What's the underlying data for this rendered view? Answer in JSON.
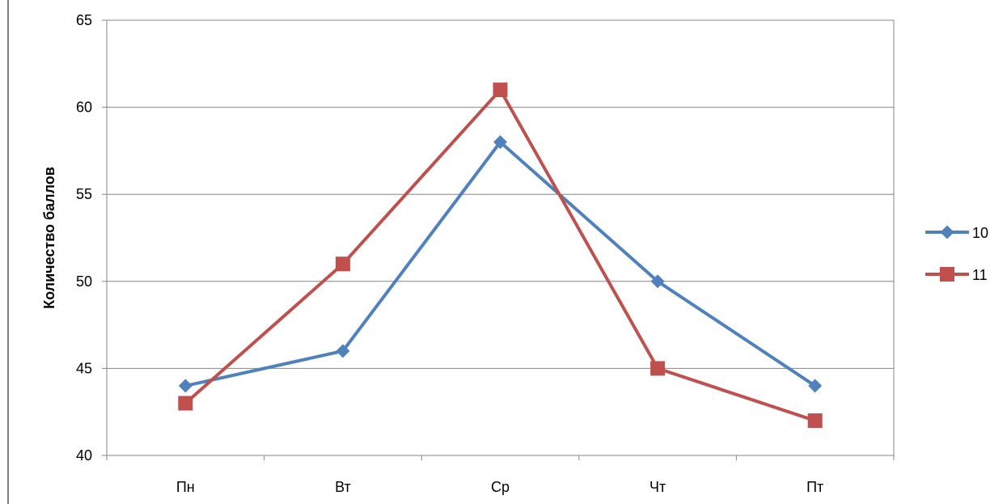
{
  "chart_data": {
    "type": "line",
    "title": "",
    "xlabel": "",
    "ylabel": "Количество баллов",
    "categories": [
      "Пн",
      "Вт",
      "Ср",
      "Чт",
      "Пт"
    ],
    "ylim": [
      40,
      65
    ],
    "yticks": [
      40,
      45,
      50,
      55,
      60,
      65
    ],
    "grid": true,
    "legend_position": "right",
    "series": [
      {
        "name": "10",
        "values": [
          44,
          46,
          58,
          50,
          44
        ],
        "color": "#4F81BD",
        "marker": "diamond"
      },
      {
        "name": "11",
        "values": [
          43,
          51,
          61,
          45,
          42
        ],
        "color": "#C0504D",
        "marker": "square"
      }
    ]
  }
}
